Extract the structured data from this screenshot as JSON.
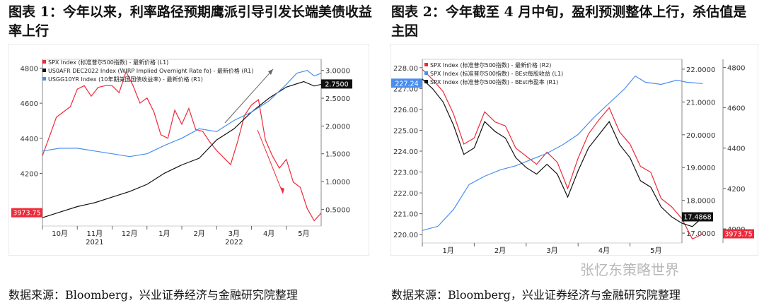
{
  "figures": [
    {
      "title": "图表 1：今年以来，利率路径预期鹰派引导引发长端美债收益率上行",
      "source": "数据来源：Bloomberg，兴业证券经济与金融研究院整理"
    },
    {
      "title": "图表 2：今年截至 4 月中旬，盈利预测整体上行，杀估值是主因",
      "source": "数据来源：Bloomberg，兴业证券经济与金融研究院整理"
    }
  ],
  "watermark": "张忆东策略世界",
  "colors": {
    "red": "#ee2a3a",
    "black": "#111111",
    "blue": "#4a8ef0",
    "gray": "#888888"
  },
  "chart_data": [
    {
      "type": "line",
      "x_tick_labels": [
        "10月",
        "11月",
        "12月",
        "1月",
        "2月",
        "3月",
        "4月",
        "5月"
      ],
      "x_year_labels": [
        {
          "label": "2021",
          "tick": 1
        },
        {
          "label": "2022",
          "tick": 5
        }
      ],
      "y_left": {
        "ticks": [
          4200,
          4400,
          4600,
          4800
        ],
        "tick_labels": [
          "4200",
          "4400",
          "4600",
          "4800"
        ],
        "range": [
          3900,
          4850
        ]
      },
      "y_right": {
        "ticks": [
          0.5,
          1.0,
          1.5,
          2.0,
          2.5,
          3.0
        ],
        "tick_labels": [
          "0.5000",
          "1.0000",
          "1.5000",
          "2.0000",
          "2.5000",
          "3.0000"
        ],
        "range": [
          0.2,
          3.2
        ]
      },
      "legend": [
        {
          "label": "SPX Index (标准普尔500指数) - 最新价格 (L1)",
          "color": "#ee2a3a"
        },
        {
          "label": "US0AFR DEC2022 Index (WIRP Implied Overnight Rate fo) - 最新价格 (R1)",
          "color": "#111111"
        },
        {
          "label": "USGG10YR Index (10年期美国国债收益率) - 最新价格 (R1)",
          "color": "#4a8ef0"
        }
      ],
      "last_value_labels": [
        {
          "axis": "left",
          "value": 3973.75,
          "label": "3973.75",
          "color": "#ee2a3a"
        },
        {
          "axis": "right",
          "value": 2.75,
          "label": "2.7500",
          "color": "#111111"
        }
      ],
      "series": [
        {
          "name": "SPX Index (标准普尔500指数) - 最新价格 (L1)",
          "axis": "left",
          "color": "#ee2a3a",
          "x": [
            0,
            0.2,
            0.4,
            0.6,
            0.8,
            1.0,
            1.2,
            1.4,
            1.6,
            1.8,
            2.0,
            2.2,
            2.4,
            2.6,
            2.8,
            3.0,
            3.2,
            3.4,
            3.6,
            3.8,
            4.0,
            4.2,
            4.4,
            4.6,
            4.8,
            5.0,
            5.2,
            5.4,
            5.6,
            5.8,
            6.0,
            6.2,
            6.4,
            6.6,
            6.8,
            7.0,
            7.2,
            7.4,
            7.6,
            7.8,
            8.0
          ],
          "y": [
            4300,
            4410,
            4520,
            4550,
            4580,
            4680,
            4700,
            4640,
            4690,
            4700,
            4700,
            4660,
            4780,
            4700,
            4600,
            4630,
            4550,
            4420,
            4400,
            4560,
            4480,
            4570,
            4450,
            4440,
            4380,
            4330,
            4290,
            4250,
            4380,
            4530,
            4590,
            4620,
            4390,
            4300,
            4230,
            4280,
            4150,
            4120,
            4000,
            3930,
            3973.75
          ]
        },
        {
          "name": "US0AFR DEC2022 Index (WIRP Implied Overnight Rate fo) - 最新价格 (R1)",
          "axis": "right",
          "color": "#111111",
          "x": [
            0,
            0.5,
            1.0,
            1.5,
            2.0,
            2.5,
            3.0,
            3.5,
            4.0,
            4.5,
            5.0,
            5.5,
            6.0,
            6.5,
            7.0,
            7.5,
            7.8,
            8.0
          ],
          "y": [
            0.35,
            0.45,
            0.55,
            0.62,
            0.72,
            0.82,
            0.95,
            1.15,
            1.3,
            1.42,
            1.75,
            1.95,
            2.25,
            2.5,
            2.7,
            2.8,
            2.72,
            2.75
          ]
        },
        {
          "name": "USGG10YR Index (10年期美国国债收益率) - 最新价格 (R1)",
          "axis": "right",
          "color": "#4a8ef0",
          "x": [
            0,
            0.5,
            1.0,
            1.5,
            2.0,
            2.5,
            3.0,
            3.5,
            4.0,
            4.5,
            5.0,
            5.5,
            6.0,
            6.5,
            7.0,
            7.3,
            7.6,
            7.8,
            8.0
          ],
          "y": [
            1.55,
            1.6,
            1.6,
            1.55,
            1.5,
            1.45,
            1.5,
            1.65,
            1.78,
            1.95,
            1.9,
            2.1,
            2.25,
            2.45,
            2.75,
            2.95,
            3.0,
            2.9,
            2.95
          ]
        }
      ]
    },
    {
      "type": "line",
      "x_tick_labels": [
        "1月",
        "2月",
        "3月",
        "4月",
        "5月"
      ],
      "x_year_labels": [
        {
          "label": "2022",
          "tick": 2
        }
      ],
      "y_left": {
        "ticks": [
          220,
          221,
          222,
          223,
          224,
          225,
          226,
          227,
          228
        ],
        "tick_labels": [
          "220.00",
          "221.00",
          "222.00",
          "223.00",
          "224.00",
          "225.00",
          "226.00",
          "227.00",
          "228.00"
        ],
        "range": [
          219.6,
          228.4
        ]
      },
      "y_right": {
        "ticks": [
          17,
          18,
          19,
          20,
          21,
          22
        ],
        "tick_labels": [
          "17.0000",
          "18.0000",
          "19.0000",
          "20.0000",
          "21.0000",
          "22.0000"
        ],
        "range": [
          16.7,
          22.3
        ]
      },
      "y_right2": {
        "ticks": [
          4000,
          4200,
          4400,
          4600,
          4800
        ],
        "tick_labels": [
          "4000",
          "4200",
          "4400",
          "4600",
          "4800"
        ],
        "range": [
          3930,
          4840
        ]
      },
      "legend": [
        {
          "label": "SPX Index (标准普尔500指数) - 最新价格 (R2)",
          "color": "#ee2a3a"
        },
        {
          "label": "SPX Index (标准普尔500指数) - BEst每股收益 (L1)",
          "color": "#4a8ef0"
        },
        {
          "label": "SPX Index (标准普尔500指数) - BEst市盈率 (R1)",
          "color": "#111111"
        }
      ],
      "last_value_labels": [
        {
          "axis": "left",
          "value": 227.24,
          "label": "227.24",
          "color": "#4a8ef0"
        },
        {
          "axis": "right",
          "value": 17.4868,
          "label": "17.4868",
          "color": "#111111"
        },
        {
          "axis": "right2",
          "value": 3973.75,
          "label": "3973.75",
          "color": "#ee2a3a"
        }
      ],
      "series": [
        {
          "name": "SPX Index (标准普尔500指数) - 最新价格 (R2)",
          "axis": "right2",
          "color": "#ee2a3a",
          "x": [
            0,
            0.2,
            0.4,
            0.6,
            0.8,
            1.0,
            1.2,
            1.4,
            1.6,
            1.8,
            2.0,
            2.2,
            2.4,
            2.6,
            2.8,
            3.0,
            3.2,
            3.4,
            3.6,
            3.8,
            4.0,
            4.2,
            4.4,
            4.6,
            4.8,
            5.0,
            5.2,
            5.4
          ],
          "y": [
            4790,
            4740,
            4680,
            4570,
            4420,
            4450,
            4580,
            4530,
            4510,
            4400,
            4360,
            4320,
            4380,
            4330,
            4200,
            4350,
            4470,
            4540,
            4600,
            4480,
            4420,
            4310,
            4280,
            4150,
            4110,
            4050,
            3950,
            3973.75
          ]
        },
        {
          "name": "SPX Index (标准普尔500指数) - BEst每股收益 (L1)",
          "axis": "left",
          "color": "#4a8ef0",
          "x": [
            0,
            0.3,
            0.6,
            0.9,
            1.2,
            1.5,
            1.8,
            2.1,
            2.4,
            2.7,
            3.0,
            3.3,
            3.6,
            3.9,
            4.1,
            4.3,
            4.6,
            4.9,
            5.1,
            5.4
          ],
          "y": [
            220.2,
            220.4,
            221.2,
            222.4,
            222.8,
            223.1,
            223.3,
            223.6,
            223.9,
            224.3,
            224.8,
            225.6,
            226.3,
            227.0,
            227.6,
            227.3,
            227.2,
            227.4,
            227.3,
            227.24
          ]
        },
        {
          "name": "SPX Index (标准普尔500指数) - BEst市盈率 (R1)",
          "axis": "right",
          "color": "#111111",
          "x": [
            0,
            0.2,
            0.4,
            0.6,
            0.8,
            1.0,
            1.2,
            1.4,
            1.6,
            1.8,
            2.0,
            2.2,
            2.4,
            2.6,
            2.8,
            3.0,
            3.2,
            3.4,
            3.6,
            3.8,
            4.0,
            4.2,
            4.4,
            4.6,
            4.8,
            5.0,
            5.2,
            5.4
          ],
          "y": [
            21.7,
            21.4,
            21.0,
            20.3,
            19.4,
            19.6,
            20.4,
            20.1,
            19.9,
            19.3,
            19.0,
            18.8,
            19.1,
            18.8,
            18.1,
            18.9,
            19.6,
            20.0,
            20.4,
            19.7,
            19.3,
            18.6,
            18.4,
            17.8,
            17.5,
            17.3,
            17.2,
            17.4868
          ]
        }
      ]
    }
  ]
}
